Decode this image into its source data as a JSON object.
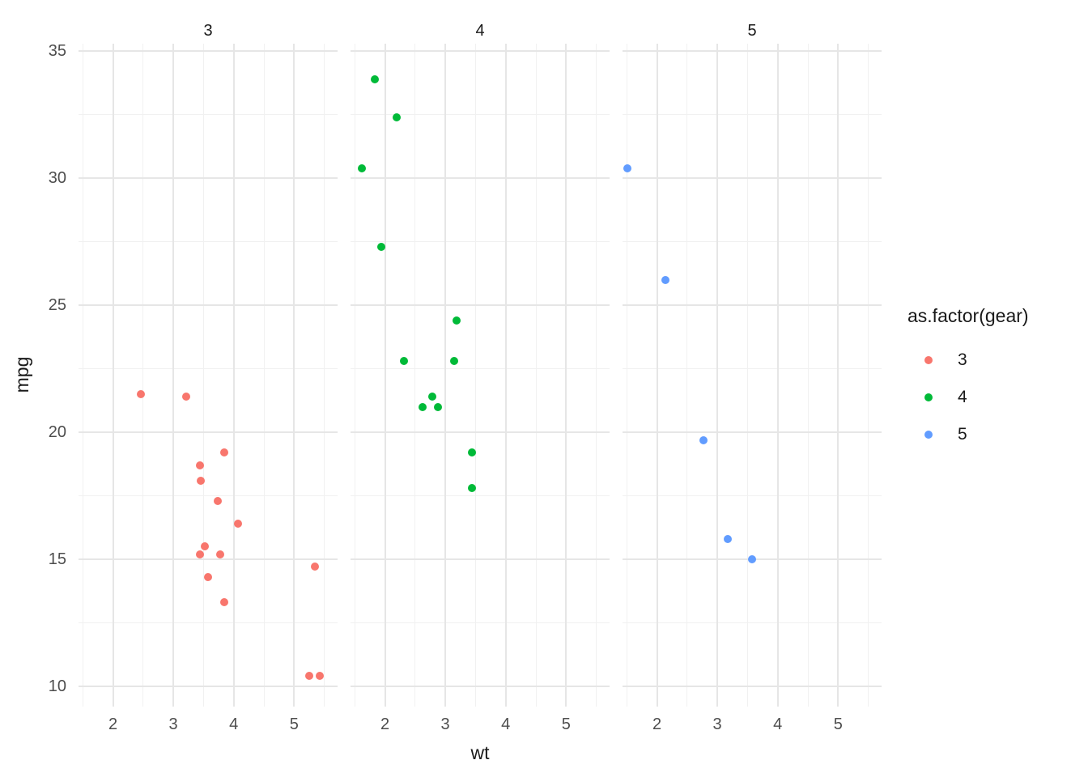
{
  "chart_data": {
    "type": "scatter",
    "xlabel": "wt",
    "ylabel": "mpg",
    "x_axis": {
      "ticks": [
        2,
        3,
        4,
        5
      ],
      "minor": [
        1.5,
        2.5,
        3.5,
        4.5,
        5.5
      ],
      "lim": [
        1.43,
        5.72
      ]
    },
    "y_axis": {
      "ticks": [
        35,
        30,
        25,
        20,
        15,
        10
      ],
      "minor": [
        12.5,
        17.5,
        22.5,
        27.5,
        32.5
      ],
      "lim": [
        9.2,
        35.3
      ]
    },
    "grid": {
      "major_color": "#e6e6e6",
      "minor_color": "#f1f1f1",
      "background": "#ffffff"
    },
    "axis_text_color": "#4d4d4d",
    "facets": [
      {
        "label": "3",
        "color": "#F8766D",
        "points": [
          [
            2.465,
            21.5
          ],
          [
            3.215,
            21.4
          ],
          [
            3.44,
            18.7
          ],
          [
            3.46,
            18.1
          ],
          [
            3.435,
            15.2
          ],
          [
            3.52,
            15.5
          ],
          [
            3.57,
            14.3
          ],
          [
            3.73,
            17.3
          ],
          [
            3.78,
            15.2
          ],
          [
            3.84,
            13.3
          ],
          [
            3.845,
            19.2
          ],
          [
            4.07,
            16.4
          ],
          [
            5.25,
            10.4
          ],
          [
            5.345,
            14.7
          ],
          [
            5.424,
            10.4
          ]
        ]
      },
      {
        "label": "4",
        "color": "#00BA38",
        "points": [
          [
            1.615,
            30.4
          ],
          [
            1.835,
            33.9
          ],
          [
            1.935,
            27.3
          ],
          [
            2.2,
            32.4
          ],
          [
            2.32,
            22.8
          ],
          [
            2.62,
            21
          ],
          [
            2.78,
            21.4
          ],
          [
            2.875,
            21
          ],
          [
            3.15,
            22.8
          ],
          [
            3.19,
            24.4
          ],
          [
            3.44,
            19.2
          ],
          [
            3.44,
            17.8
          ]
        ]
      },
      {
        "label": "5",
        "color": "#619CFF",
        "points": [
          [
            1.513,
            30.4
          ],
          [
            2.14,
            26
          ],
          [
            2.77,
            19.7
          ],
          [
            3.17,
            15.8
          ],
          [
            3.57,
            15
          ]
        ]
      }
    ],
    "legend": {
      "title": "as.factor(gear)",
      "position": "right",
      "entries": [
        {
          "label": "3",
          "color": "#F8766D"
        },
        {
          "label": "4",
          "color": "#00BA38"
        },
        {
          "label": "5",
          "color": "#619CFF"
        }
      ]
    }
  }
}
